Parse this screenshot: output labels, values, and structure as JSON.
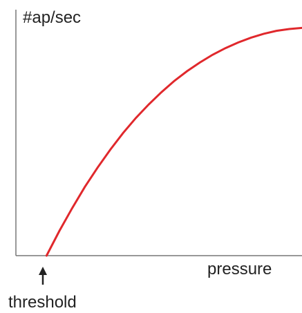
{
  "chart_data": {
    "type": "line",
    "title": "",
    "ylabel": "#ap/sec",
    "xlabel": "pressure",
    "annotations": [
      {
        "label": "threshold",
        "x": 0
      }
    ],
    "grid": false,
    "legend": "none",
    "series": [
      {
        "color": "#e0282c",
        "x": [
          0,
          0.05,
          0.1,
          0.15,
          0.2,
          0.25,
          0.3,
          0.35,
          0.4,
          0.45,
          0.5,
          0.55,
          0.6,
          0.65,
          0.7,
          0.75,
          0.8,
          0.85,
          0.9,
          0.95,
          1.0
        ],
        "y": [
          0,
          0.108,
          0.208,
          0.302,
          0.387,
          0.466,
          0.539,
          0.605,
          0.664,
          0.718,
          0.767,
          0.81,
          0.848,
          0.882,
          0.911,
          0.936,
          0.957,
          0.974,
          0.987,
          0.995,
          1.0
        ]
      }
    ],
    "xlim": [
      -0.12,
      1.0
    ],
    "ylim": [
      0,
      1.08
    ]
  },
  "colors": {
    "axis": "#777777",
    "curve": "#e0282c",
    "text": "#222222"
  }
}
